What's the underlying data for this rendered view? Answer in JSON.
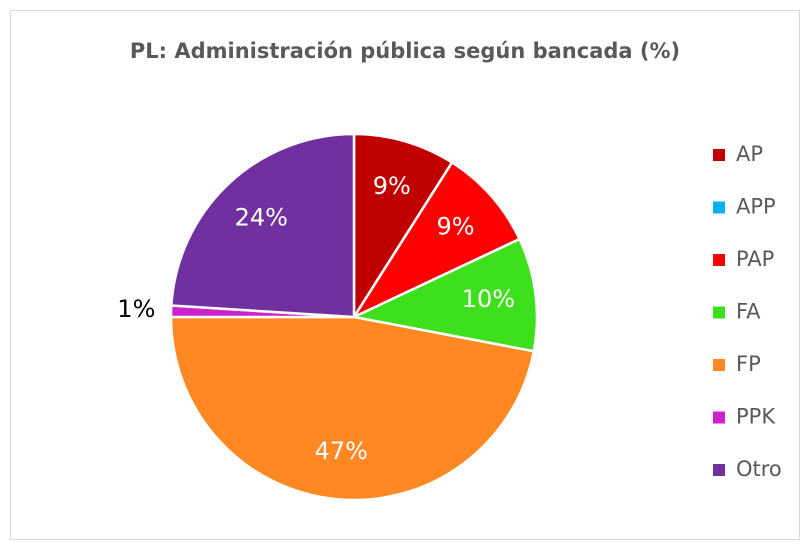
{
  "chart_data": {
    "type": "pie",
    "title": "PL: Administración pública según bancada (%)",
    "categories": [
      "AP",
      "APP",
      "PAP",
      "FA",
      "FP",
      "PPK",
      "Otro"
    ],
    "values": [
      9,
      0,
      9,
      10,
      47,
      1,
      24
    ],
    "value_labels": [
      "9%",
      null,
      "9%",
      "10%",
      "47%",
      "1%",
      "24%"
    ],
    "colors": [
      "#c00000",
      "#00b0f0",
      "#ff0000",
      "#3ee01e",
      "#ff8822",
      "#cc22cc",
      "#7030a0"
    ],
    "legend": "right"
  }
}
